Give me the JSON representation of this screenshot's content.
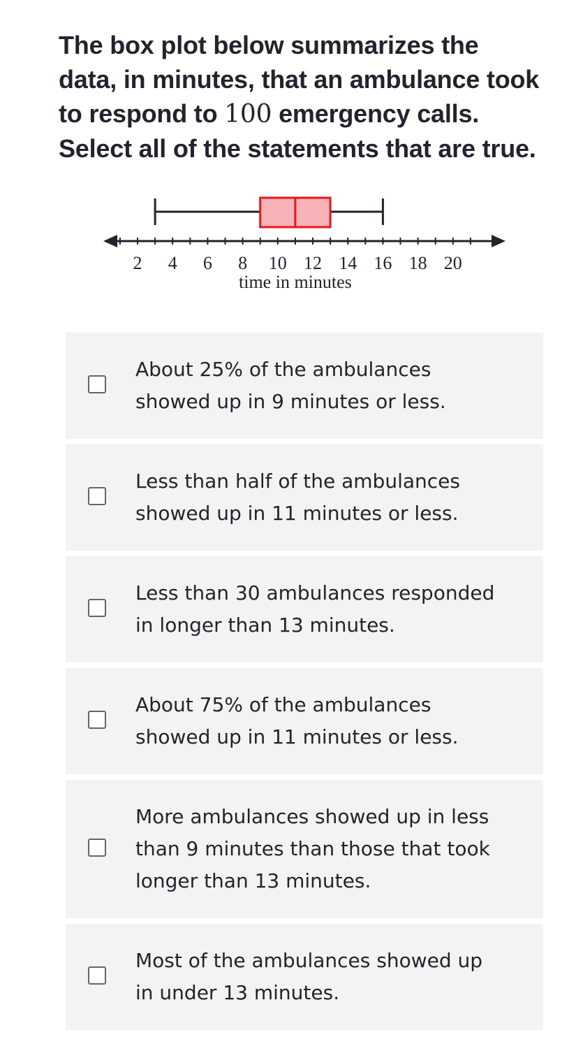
{
  "question": {
    "line1": "The box plot below summarizes the",
    "line2": "data, in minutes, that an ambulance took",
    "line3_prefix": "to respond to ",
    "line3_number": "100",
    "line3_suffix": " emergency calls.",
    "line4": "Select all of the statements that are true."
  },
  "chart_data": {
    "type": "boxplot",
    "xlabel": "time in minutes",
    "ticks": [
      2,
      4,
      6,
      8,
      10,
      12,
      14,
      16,
      18,
      20
    ],
    "xlim": [
      0,
      22
    ],
    "min": 3,
    "q1": 9,
    "median": 11,
    "q3": 13,
    "max": 16,
    "colors": {
      "box_fill": "#f8b3b8",
      "box_stroke": "#e8161b",
      "axis": "#21242c"
    }
  },
  "choices": [
    {
      "text": "About 25% of the ambulances\nshowed up in 9 minutes or less.",
      "checked": false
    },
    {
      "text": "Less than half of the ambulances\nshowed up in 11 minutes or less.",
      "checked": false
    },
    {
      "text": "Less than 30 ambulances responded\nin longer than 13 minutes.",
      "checked": false
    },
    {
      "text": "About 75% of the ambulances\nshowed up in 11 minutes or less.",
      "checked": false
    },
    {
      "text": "More ambulances showed up in less\nthan 9 minutes than those that took\nlonger than 13 minutes.",
      "checked": false
    },
    {
      "text": "Most of the ambulances showed up\nin under 13 minutes.",
      "checked": false
    }
  ]
}
